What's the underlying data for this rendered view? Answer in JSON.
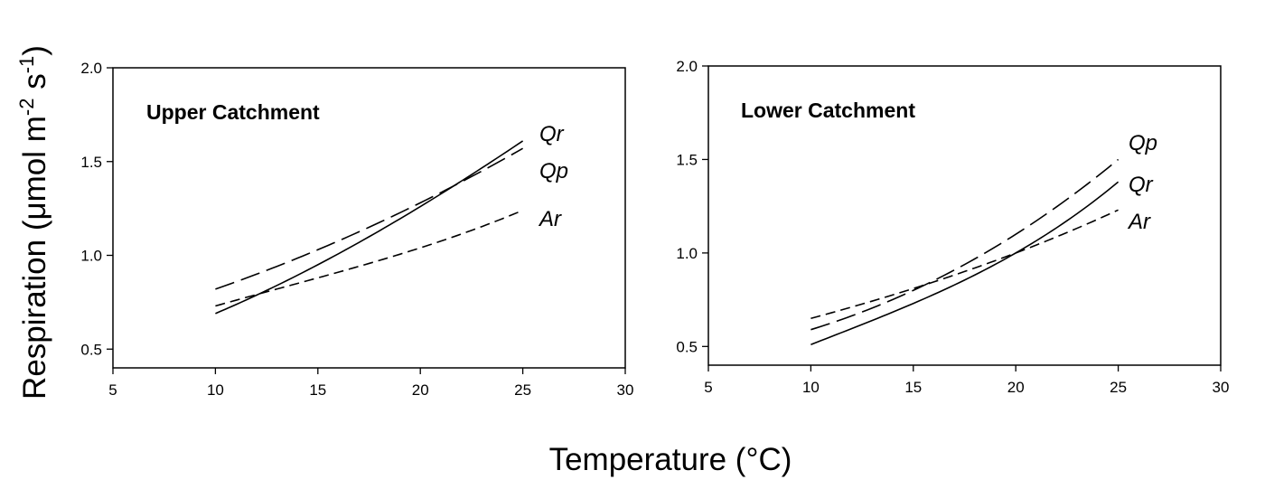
{
  "figure": {
    "xlabel": "Temperature (°C)",
    "ylabel_main": "Respiration (μmol m",
    "ylabel_sup1": "-2",
    "ylabel_mid": " s",
    "ylabel_sup2": "-1",
    "ylabel_end": ")"
  },
  "chart_data": [
    {
      "type": "line",
      "title": "Upper Catchment",
      "xlim": [
        5,
        30
      ],
      "ylim": [
        0.4,
        2.0
      ],
      "xticks": [
        5,
        10,
        15,
        20,
        25,
        30
      ],
      "yticks": [
        0.5,
        1.0,
        1.5,
        2.0
      ],
      "xtick_labels": [
        "5",
        "10",
        "15",
        "20",
        "25",
        "30"
      ],
      "ytick_labels": [
        "0.5",
        "1.0",
        "1.5",
        "2.0"
      ],
      "grid": false,
      "series": [
        {
          "name": "Qr",
          "style": "solid",
          "x": [
            10,
            15,
            20,
            25
          ],
          "y": [
            0.69,
            0.95,
            1.26,
            1.61
          ]
        },
        {
          "name": "Qp",
          "style": "long-dash",
          "x": [
            10,
            15,
            20,
            25
          ],
          "y": [
            0.82,
            1.03,
            1.28,
            1.57
          ]
        },
        {
          "name": "Ar",
          "style": "short-dash",
          "x": [
            10,
            15,
            20,
            25
          ],
          "y": [
            0.73,
            0.88,
            1.04,
            1.24
          ]
        }
      ],
      "label_order": [
        "Qr",
        "Qp",
        "Ar"
      ]
    },
    {
      "type": "line",
      "title": "Lower Catchment",
      "xlim": [
        5,
        30
      ],
      "ylim": [
        0.4,
        2.0
      ],
      "xticks": [
        5,
        10,
        15,
        20,
        25,
        30
      ],
      "yticks": [
        0.5,
        1.0,
        1.5,
        2.0
      ],
      "xtick_labels": [
        "5",
        "10",
        "15",
        "20",
        "25",
        "30"
      ],
      "ytick_labels": [
        "0.5",
        "1.0",
        "1.5",
        "2.0"
      ],
      "grid": false,
      "series": [
        {
          "name": "Qp",
          "style": "long-dash",
          "x": [
            10,
            15,
            20,
            25
          ],
          "y": [
            0.59,
            0.8,
            1.1,
            1.5
          ]
        },
        {
          "name": "Qr",
          "style": "solid",
          "x": [
            10,
            15,
            20,
            25
          ],
          "y": [
            0.51,
            0.73,
            1.0,
            1.38
          ]
        },
        {
          "name": "Ar",
          "style": "short-dash",
          "x": [
            10,
            15,
            20,
            25
          ],
          "y": [
            0.65,
            0.81,
            1.0,
            1.23
          ]
        }
      ],
      "label_order": [
        "Qp",
        "Qr",
        "Ar"
      ]
    }
  ]
}
